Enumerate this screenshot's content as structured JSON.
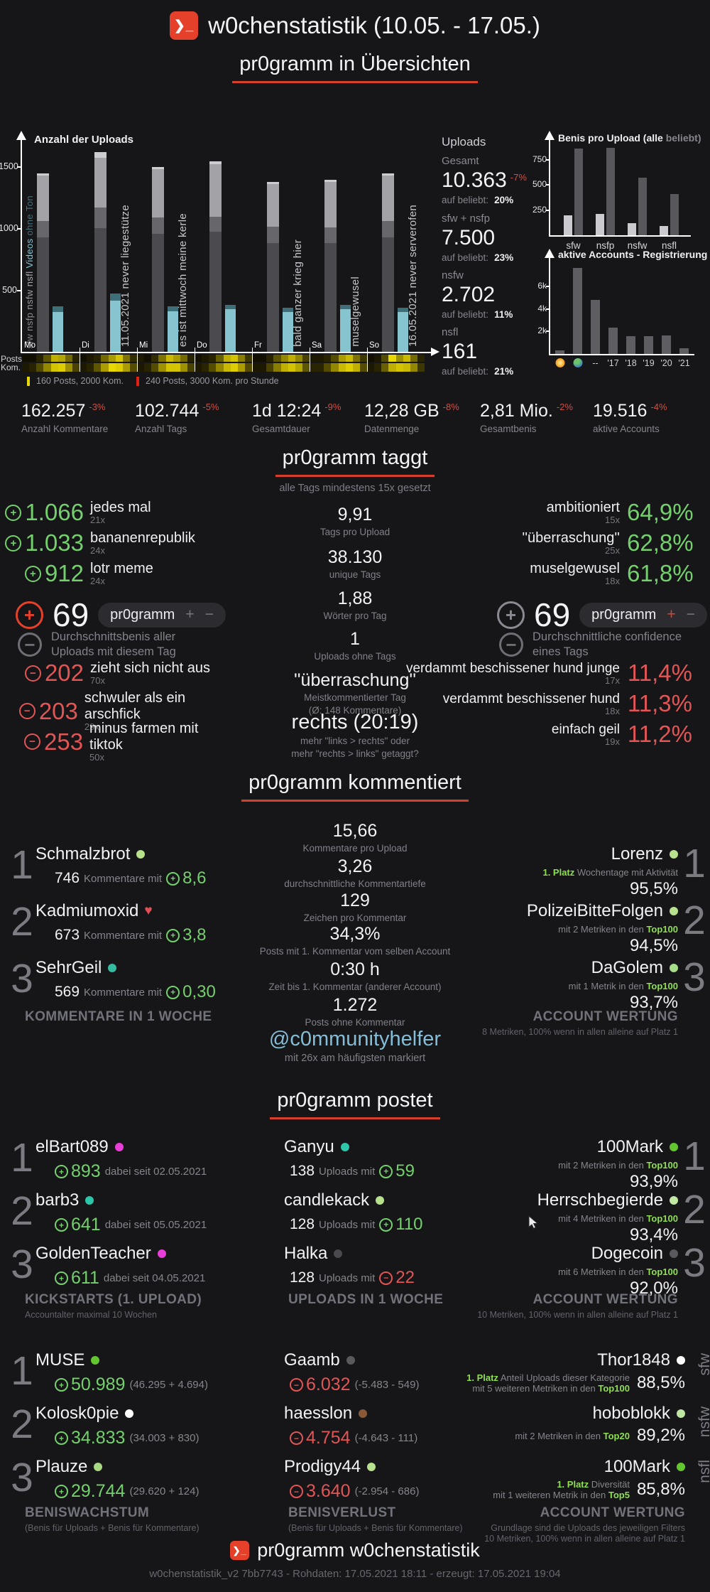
{
  "header": {
    "title": "w0chenstatistik (10.05. - 17.05.)"
  },
  "overview": {
    "title": "pr0gramm in Übersichten"
  },
  "main_chart": {
    "title": "Anzahl der Uploads",
    "posts_label": "Posts",
    "kom_label": "Kom.",
    "side_legend": [
      "sfw",
      "nsfp",
      "nsfw",
      "nsfl",
      "Videos",
      "ohne Ton"
    ]
  },
  "uploads": {
    "title": "Uploads",
    "items": [
      {
        "label": "Gesamt",
        "value": "10.363",
        "delta": "-7%",
        "sub_label": "auf beliebt:",
        "sub_value": "20%"
      },
      {
        "label": "sfw + nsfp",
        "value": "7.500",
        "delta": "",
        "sub_label": "auf beliebt:",
        "sub_value": "23%"
      },
      {
        "label": "nsfw",
        "value": "2.702",
        "delta": "",
        "sub_label": "auf beliebt:",
        "sub_value": "11%"
      },
      {
        "label": "nsfl",
        "value": "161",
        "delta": "",
        "sub_label": "auf beliebt:",
        "sub_value": "21%"
      }
    ]
  },
  "stats": [
    {
      "value": "162.257",
      "delta": "-3%",
      "label": "Anzahl Kommentare"
    },
    {
      "value": "102.744",
      "delta": "-5%",
      "label": "Anzahl Tags"
    },
    {
      "value": "1d 12:24",
      "delta": "-9%",
      "label": "Gesamtdauer"
    },
    {
      "value": "12,28 GB",
      "delta": "-8%",
      "label": "Datenmenge"
    },
    {
      "value": "2,81 Mio.",
      "delta": "-2%",
      "label": "Gesamtbenis"
    },
    {
      "value": "19.516",
      "delta": "-4%",
      "label": "aktive Accounts"
    }
  ],
  "tags": {
    "title": "pr0gramm taggt",
    "subtitle": "alle Tags mindestens 15x gesetzt",
    "pos": [
      {
        "value": "1.066",
        "tag": "jedes mal",
        "count": "21x"
      },
      {
        "value": "1.033",
        "tag": "bananenrepublik",
        "count": "24x"
      },
      {
        "value": "912",
        "tag": "lotr meme",
        "count": "24x"
      }
    ],
    "neg": [
      {
        "value": "202",
        "tag": "zieht sich nicht aus",
        "count": "70x"
      },
      {
        "value": "203",
        "tag": "schwuler als ein arschfick",
        "count": "29x"
      },
      {
        "value": "253",
        "tag": "minus farmen mit tiktok",
        "count": "50x"
      }
    ],
    "benis": {
      "value": "69",
      "pill": "pr0gramm",
      "plus": "+",
      "minus": "−",
      "desc": "Durchschnittsbenis aller Uploads mit diesem Tag"
    },
    "conf": {
      "value": "69",
      "pill": "pr0gramm",
      "plus": "+",
      "minus": "−",
      "desc": "Durchschnittliche confidence eines Tags"
    },
    "mid": [
      {
        "value": "9,91",
        "label": "Tags pro Upload"
      },
      {
        "value": "38.130",
        "label": "unique Tags"
      },
      {
        "value": "1,88",
        "label": "Wörter pro Tag"
      },
      {
        "value": "1",
        "label": "Uploads ohne Tags"
      }
    ],
    "most": {
      "value": "''überraschung''",
      "l1": "Meistkommentierter Tag",
      "l2": "(Ø: 148 Kommentare)"
    },
    "rl": {
      "value": "rechts (20:19)",
      "l1": "mehr \"links > rechts\" oder",
      "l2": "mehr \"rechts > links\" getaggt?"
    },
    "high": [
      {
        "tag": "ambitioniert",
        "count": "15x",
        "value": "64,9%"
      },
      {
        "tag": "''überraschung''",
        "count": "25x",
        "value": "62,8%"
      },
      {
        "tag": "muselgewusel",
        "count": "18x",
        "value": "61,8%"
      }
    ],
    "low": [
      {
        "tag": "verdammt beschissener hund junge",
        "count": "17x",
        "value": "11,4%"
      },
      {
        "tag": "verdammt beschissener hund",
        "count": "18x",
        "value": "11,3%"
      },
      {
        "tag": "einfach geil",
        "count": "19x",
        "value": "11,2%"
      }
    ]
  },
  "comments": {
    "title": "pr0gramm kommentiert",
    "left": {
      "rows": [
        {
          "rank": "1",
          "name": "Schmalzbrot",
          "dot": "#b8e18e",
          "value": "746",
          "mid": "Kommentare mit",
          "plus": "8,6"
        },
        {
          "rank": "2",
          "name": "Kadmiumoxid",
          "heart": "♥",
          "value": "673",
          "mid": "Kommentare mit",
          "plus": "3,8"
        },
        {
          "rank": "3",
          "name": "SehrGeil",
          "dot": "#35bba0",
          "value": "569",
          "mid": "Kommentare mit",
          "plus": "0,30"
        }
      ],
      "footer": "KOMMENTARE IN 1 WOCHE"
    },
    "mid": [
      {
        "value": "15,66",
        "label": "Kommentare pro Upload"
      },
      {
        "value": "3,26",
        "label": "durchschnittliche Kommentartiefe"
      },
      {
        "value": "129",
        "label": "Zeichen pro Kommentar"
      },
      {
        "value": "34,3%",
        "label": "Posts mit 1. Kommentar vom selben Account"
      },
      {
        "value": "0:30 h",
        "label": "Zeit bis 1. Kommentar (anderer Account)"
      },
      {
        "value": "1.272",
        "label": "Posts ohne Kommentar"
      }
    ],
    "helper": {
      "value": "@c0mmunityhelfer",
      "label": "mit 26x am häufigsten markiert"
    },
    "right": {
      "rows": [
        {
          "rank": "1",
          "name": "Lorenz",
          "dot": "#b8e18e",
          "pre": "1. Platz",
          "desc": "Wochentage mit Aktivität",
          "hl": "",
          "value": "95,5%"
        },
        {
          "rank": "2",
          "name": "PolizeiBitteFolgen",
          "dot": "#b8e18e",
          "pre": "",
          "desc": "mit 2 Metriken in den",
          "hl": "Top100",
          "value": "94,5%"
        },
        {
          "rank": "3",
          "name": "DaGolem",
          "dot": "#a6dc8a",
          "pre": "",
          "desc": "mit 1 Metrik in den",
          "hl": "Top100",
          "value": "93,7%"
        }
      ],
      "footer": "ACCOUNT WERTUNG",
      "footer_sub": "8 Metriken, 100% wenn in allen alleine auf Platz 1"
    }
  },
  "posts": {
    "title": "pr0gramm postet",
    "kick": {
      "rows": [
        {
          "rank": "1",
          "name": "elBart089",
          "dot": "#e93dd8",
          "value": "893",
          "suffix": "dabei seit 02.05.2021"
        },
        {
          "rank": "2",
          "name": "barb3",
          "dot": "#2cc6a8",
          "value": "641",
          "suffix": "dabei seit 05.05.2021"
        },
        {
          "rank": "3",
          "name": "GoldenTeacher",
          "dot": "#e93dd8",
          "value": "611",
          "suffix": "dabei seit 04.05.2021"
        }
      ],
      "footer": "KICKSTARTS (1. UPLOAD)",
      "footer_sub": "Accountalter maximal 10 Wochen"
    },
    "week": {
      "rows": [
        {
          "name": "Ganyu",
          "dot": "#2cc6a8",
          "count": "138",
          "mid": "Uploads mit",
          "value": "59"
        },
        {
          "name": "candlekack",
          "dot": "#b8e18e",
          "count": "128",
          "mid": "Uploads mit",
          "value": "110"
        },
        {
          "name": "Halka",
          "dot": "#4a4a4e",
          "count": "128",
          "mid": "Uploads mit",
          "value": "22"
        }
      ],
      "footer": "UPLOADS IN 1 WOCHE"
    },
    "wert1": {
      "rows": [
        {
          "rank": "1",
          "name": "100Mark",
          "dot": "#63c62f",
          "desc": "mit 2 Metriken in den",
          "hl": "Top100",
          "value": "93,9%"
        },
        {
          "rank": "2",
          "name": "Herrschbegierde",
          "dot": "#c2e8a4",
          "desc": "mit 4 Metriken in den",
          "hl": "Top100",
          "value": "93,4%"
        },
        {
          "rank": "3",
          "name": "Dogecoin",
          "dot": "#5a5a5e",
          "desc": "mit 6 Metriken in den",
          "hl": "Top100",
          "value": "92,0%"
        }
      ],
      "footer": "ACCOUNT WERTUNG",
      "footer_sub": "10 Metriken, 100% wenn in allen alleine auf Platz 1"
    },
    "growth": {
      "rows": [
        {
          "rank": "1",
          "name": "MUSE",
          "dot": "#63c62f",
          "value": "50.989",
          "detail": "(46.295 + 4.694)"
        },
        {
          "rank": "2",
          "name": "Kolosk0pie",
          "dot": "#ffffff",
          "value": "34.833",
          "detail": "(34.003 + 830)"
        },
        {
          "rank": "3",
          "name": "Plauze",
          "dot": "#a8d884",
          "value": "29.744",
          "detail": "(29.620 + 124)"
        }
      ],
      "footer": "BENISWACHSTUM",
      "footer_sub": "(Benis für Uploads + Benis für Kommentare)"
    },
    "loss": {
      "rows": [
        {
          "name": "Gaamb",
          "dot": "#5a5a5e",
          "value": "6.032",
          "detail": "(-5.483 - 549)"
        },
        {
          "name": "haesslon",
          "dot": "#8a5a38",
          "value": "4.754",
          "detail": "(-4.643 - 111)"
        },
        {
          "name": "Prodigy44",
          "dot": "#b8e18e",
          "value": "3.640",
          "detail": "(-2.954 - 686)"
        }
      ],
      "footer": "BENISVERLUST",
      "footer_sub": "(Benis für Uploads + Benis für Kommentare)"
    },
    "wert2": {
      "rows": [
        {
          "name": "Thor1848",
          "dot": "#ffffff",
          "pre": "1. Platz",
          "desc": "Anteil Uploads dieser Kategorie",
          "desc2": "mit 5 weiteren Metriken in den",
          "hl": "Top100",
          "value": "88,5%",
          "filter": "sfw"
        },
        {
          "name": "hoboblokk",
          "dot": "#bce6a2",
          "pre": "",
          "desc": "",
          "desc2": "mit 2 Metriken in den",
          "hl": "Top20",
          "value": "89,2%",
          "filter": "nsfw"
        },
        {
          "name": "100Mark",
          "dot": "#63c62f",
          "pre": "1. Platz",
          "desc": "Diversität",
          "desc2": "mit 1 weiteren Metrik in den",
          "hl": "Top5",
          "value": "85,8%",
          "filter": "nsfl"
        }
      ],
      "footer": "ACCOUNT WERTUNG",
      "footer_sub1": "Grundlage sind die Uploads des jeweiligen Filters",
      "footer_sub2": "10 Metriken, 100% wenn in allen alleine auf Platz 1"
    }
  },
  "page_footer": {
    "title": "pr0gramm w0chenstatistik",
    "meta": "w0chenstatistik_v2 7bb7743 - Rohdaten: 17.05.2021 18:11 - erzeugt: 17.05.2021 19:04"
  },
  "chart_data": [
    {
      "type": "bar",
      "stacked": true,
      "title": "Anzahl der Uploads",
      "categories": [
        "Mo",
        "Di",
        "Mi",
        "Do",
        "Fr",
        "Sa",
        "So"
      ],
      "series": [
        {
          "name": "sfw",
          "color": "#4b4b4f",
          "values": [
            930,
            1005,
            960,
            975,
            885,
            885,
            930
          ]
        },
        {
          "name": "nsfp",
          "color": "#67676b",
          "values": [
            130,
            165,
            130,
            120,
            135,
            125,
            130
          ]
        },
        {
          "name": "nsfw",
          "color": "#a3a3a7",
          "values": [
            370,
            405,
            390,
            425,
            345,
            370,
            365
          ]
        },
        {
          "name": "nsfl",
          "color": "#cdcdd1",
          "values": [
            20,
            45,
            15,
            25,
            20,
            15,
            15
          ]
        },
        {
          "name": "Videos",
          "color": "#86c5cf",
          "values": [
            330,
            420,
            335,
            350,
            330,
            350,
            325
          ]
        },
        {
          "name": "ohne Ton",
          "color": "#3e6e78",
          "values": [
            45,
            55,
            40,
            35,
            35,
            35,
            35
          ]
        }
      ],
      "annotations": [
        null,
        "11.05.2021 never liegestütze",
        "es ist mittwoch meine kerle",
        null,
        "bald ganzer krieg hier",
        "muselgewusel",
        "16.05.2021 never serverofen"
      ],
      "yticks": [
        "500",
        "1000",
        "1500"
      ],
      "ymax": 1700,
      "legend": [
        {
          "swatch": "#e6d800",
          "label": "160 Posts, 2000 Kom."
        },
        {
          "swatch": "#e02010",
          "label": "240 Posts, 3000 Kom. pro Stunde"
        }
      ]
    },
    {
      "type": "heatmap",
      "rows": [
        "Posts",
        "Kom."
      ],
      "buckets_per_day": 8,
      "posts": [
        [
          0,
          0,
          0.1,
          0.35,
          0.8,
          0.75,
          0.45,
          0.1
        ],
        [
          0,
          0.05,
          0.1,
          0.45,
          0.7,
          0.9,
          0.5,
          0.15
        ],
        [
          0.05,
          0,
          0.15,
          0.5,
          0.85,
          0.7,
          0.45,
          0.1
        ],
        [
          0,
          0.05,
          0.1,
          0.4,
          0.8,
          0.9,
          0.55,
          0.2
        ],
        [
          0,
          0,
          0.1,
          0.35,
          0.6,
          0.8,
          0.6,
          0.25
        ],
        [
          0.05,
          0.05,
          0.1,
          0.3,
          0.7,
          0.85,
          0.5,
          0.2
        ],
        [
          0,
          0.05,
          0.3,
          1.0,
          0.65,
          0.85,
          0.45,
          0.1
        ]
      ],
      "kom": [
        [
          0.05,
          0.1,
          0.3,
          0.6,
          0.9,
          0.95,
          0.65,
          0.25
        ],
        [
          0.05,
          0.1,
          0.35,
          0.7,
          1.0,
          0.95,
          0.7,
          0.3
        ],
        [
          0.05,
          0.1,
          0.3,
          0.65,
          0.9,
          0.9,
          0.65,
          0.25
        ],
        [
          0.05,
          0.1,
          0.3,
          0.6,
          0.85,
          0.95,
          0.7,
          0.3
        ],
        [
          0.05,
          0.05,
          0.25,
          0.55,
          0.8,
          0.9,
          0.75,
          0.35
        ],
        [
          0.1,
          0.1,
          0.3,
          0.6,
          0.85,
          0.95,
          0.8,
          0.3
        ],
        [
          0.05,
          0.1,
          0.4,
          0.8,
          0.9,
          0.85,
          0.6,
          0.2
        ]
      ]
    },
    {
      "type": "bar",
      "grouped": true,
      "title_main": "Benis pro Upload (alle",
      "title_dim": "beliebt)",
      "categories": [
        "sfw",
        "nsfp",
        "nsfw",
        "nsfl"
      ],
      "series": [
        {
          "name": "alle",
          "color": "#cbcbcf",
          "values": [
            200,
            215,
            120,
            90
          ]
        },
        {
          "name": "beliebt",
          "color": "#58585c",
          "values": [
            860,
            870,
            570,
            410
          ]
        }
      ],
      "yticks": [
        "250",
        "500",
        "750"
      ],
      "ymax": 870
    },
    {
      "type": "bar",
      "title": "aktive Accounts - Registrierung",
      "categories": [
        "icon:sun",
        "icon:globe",
        "--",
        "'17",
        "'18",
        "'19",
        "'20",
        "'21"
      ],
      "values": [
        320,
        7700,
        4840,
        2360,
        1590,
        1590,
        1650,
        510
      ],
      "yticks": [
        "2k",
        "4k",
        "6k"
      ],
      "ymax": 8000,
      "color": "#5e5e62"
    }
  ]
}
